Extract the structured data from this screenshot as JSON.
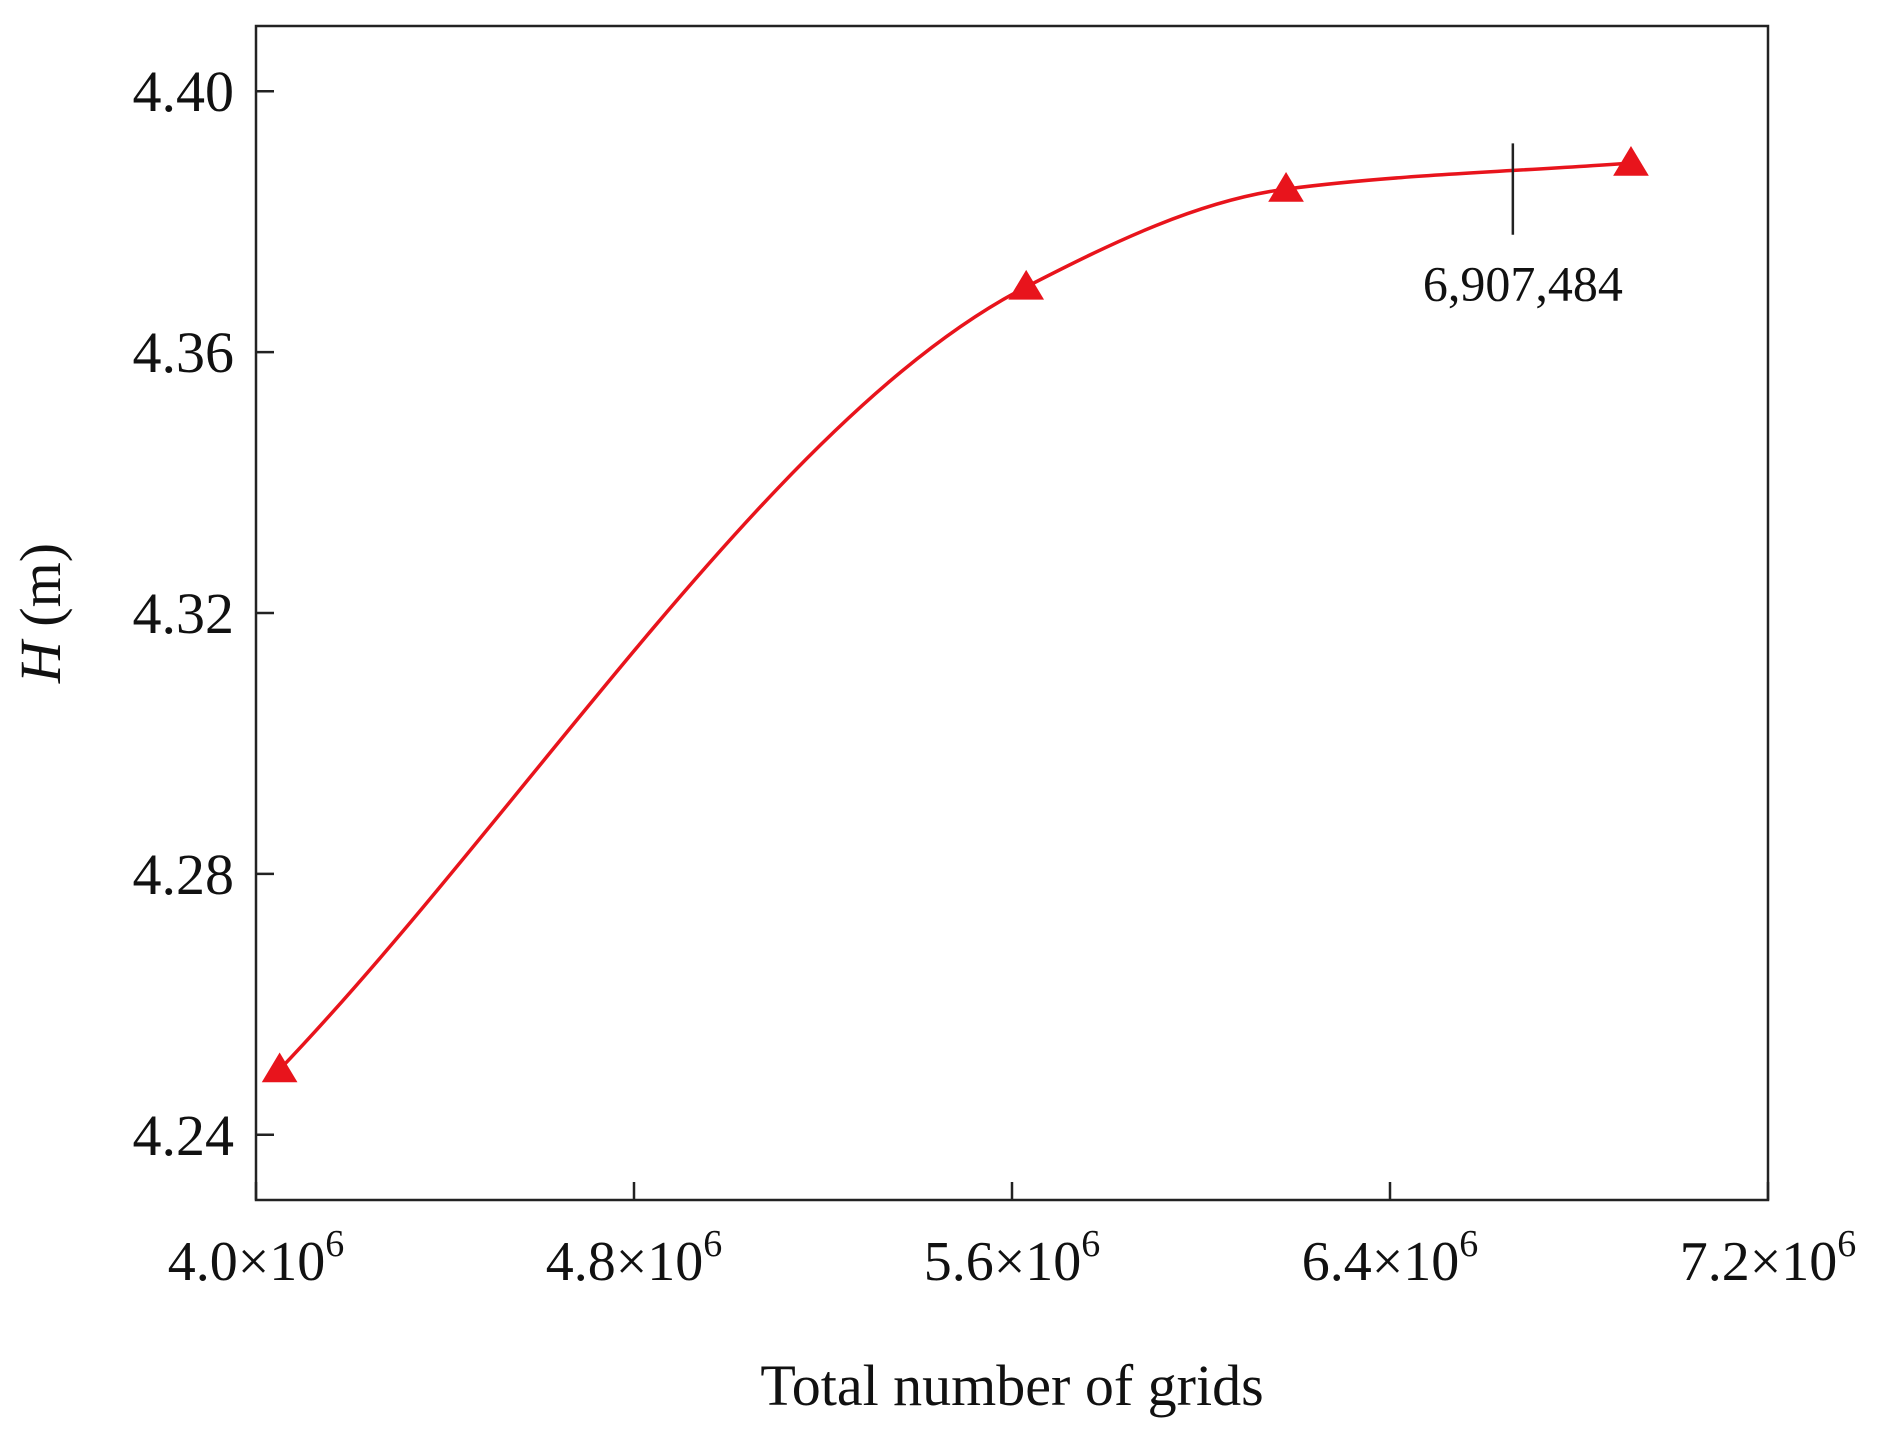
{
  "chart_data": {
    "type": "line",
    "xlabel": "Total number of grids",
    "ylabel_symbol": "H",
    "ylabel_unit": " (m)",
    "xlim": [
      4000000,
      7200000
    ],
    "ylim": [
      4.23,
      4.41
    ],
    "x_ticks": [
      {
        "value": 4000000,
        "mantissa": "4.0",
        "exponent": "6"
      },
      {
        "value": 4800000,
        "mantissa": "4.8",
        "exponent": "6"
      },
      {
        "value": 5600000,
        "mantissa": "5.6",
        "exponent": "6"
      },
      {
        "value": 6400000,
        "mantissa": "6.4",
        "exponent": "6"
      },
      {
        "value": 7200000,
        "mantissa": "7.2",
        "exponent": "6"
      }
    ],
    "y_ticks": [
      {
        "value": 4.24,
        "label": "4.24"
      },
      {
        "value": 4.28,
        "label": "4.28"
      },
      {
        "value": 4.32,
        "label": "4.32"
      },
      {
        "value": 4.36,
        "label": "4.36"
      },
      {
        "value": 4.4,
        "label": "4.40"
      }
    ],
    "series": [
      {
        "color": "#e8141c",
        "marker": "triangle",
        "x": [
          4050000,
          5630000,
          6180000,
          6910000
        ],
        "y": [
          4.25,
          4.37,
          4.385,
          4.389
        ]
      }
    ],
    "annotation": {
      "text": "6,907,484",
      "x": 6660000,
      "y_top": 4.392,
      "y_bottom": 4.378
    },
    "grid": false,
    "legend": "none"
  }
}
